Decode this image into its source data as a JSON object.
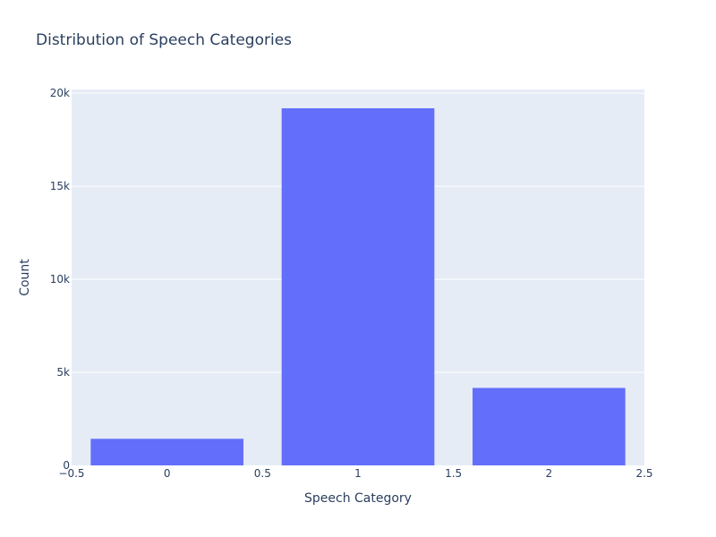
{
  "chart_data": {
    "type": "bar",
    "title": "Distribution of Speech Categories",
    "xlabel": "Speech Category",
    "ylabel": "Count",
    "categories": [
      0,
      1,
      2
    ],
    "values": [
      1430,
      19190,
      4163
    ],
    "xlim": [
      -0.5,
      2.5
    ],
    "ylim": [
      0,
      20200
    ],
    "x_ticks": [
      -0.5,
      0,
      0.5,
      1,
      1.5,
      2,
      2.5
    ],
    "x_tick_labels": [
      "−0.5",
      "0",
      "0.5",
      "1",
      "1.5",
      "2",
      "2.5"
    ],
    "y_ticks": [
      0,
      5000,
      10000,
      15000,
      20000
    ],
    "y_tick_labels": [
      "0",
      "5k",
      "10k",
      "15k",
      "20k"
    ],
    "grid": true,
    "bar_width": 0.8,
    "colors": {
      "bar": "#636efa",
      "plot_bg": "#e5ecf6",
      "grid": "#ffffff",
      "text": "#2a3f5f"
    }
  }
}
